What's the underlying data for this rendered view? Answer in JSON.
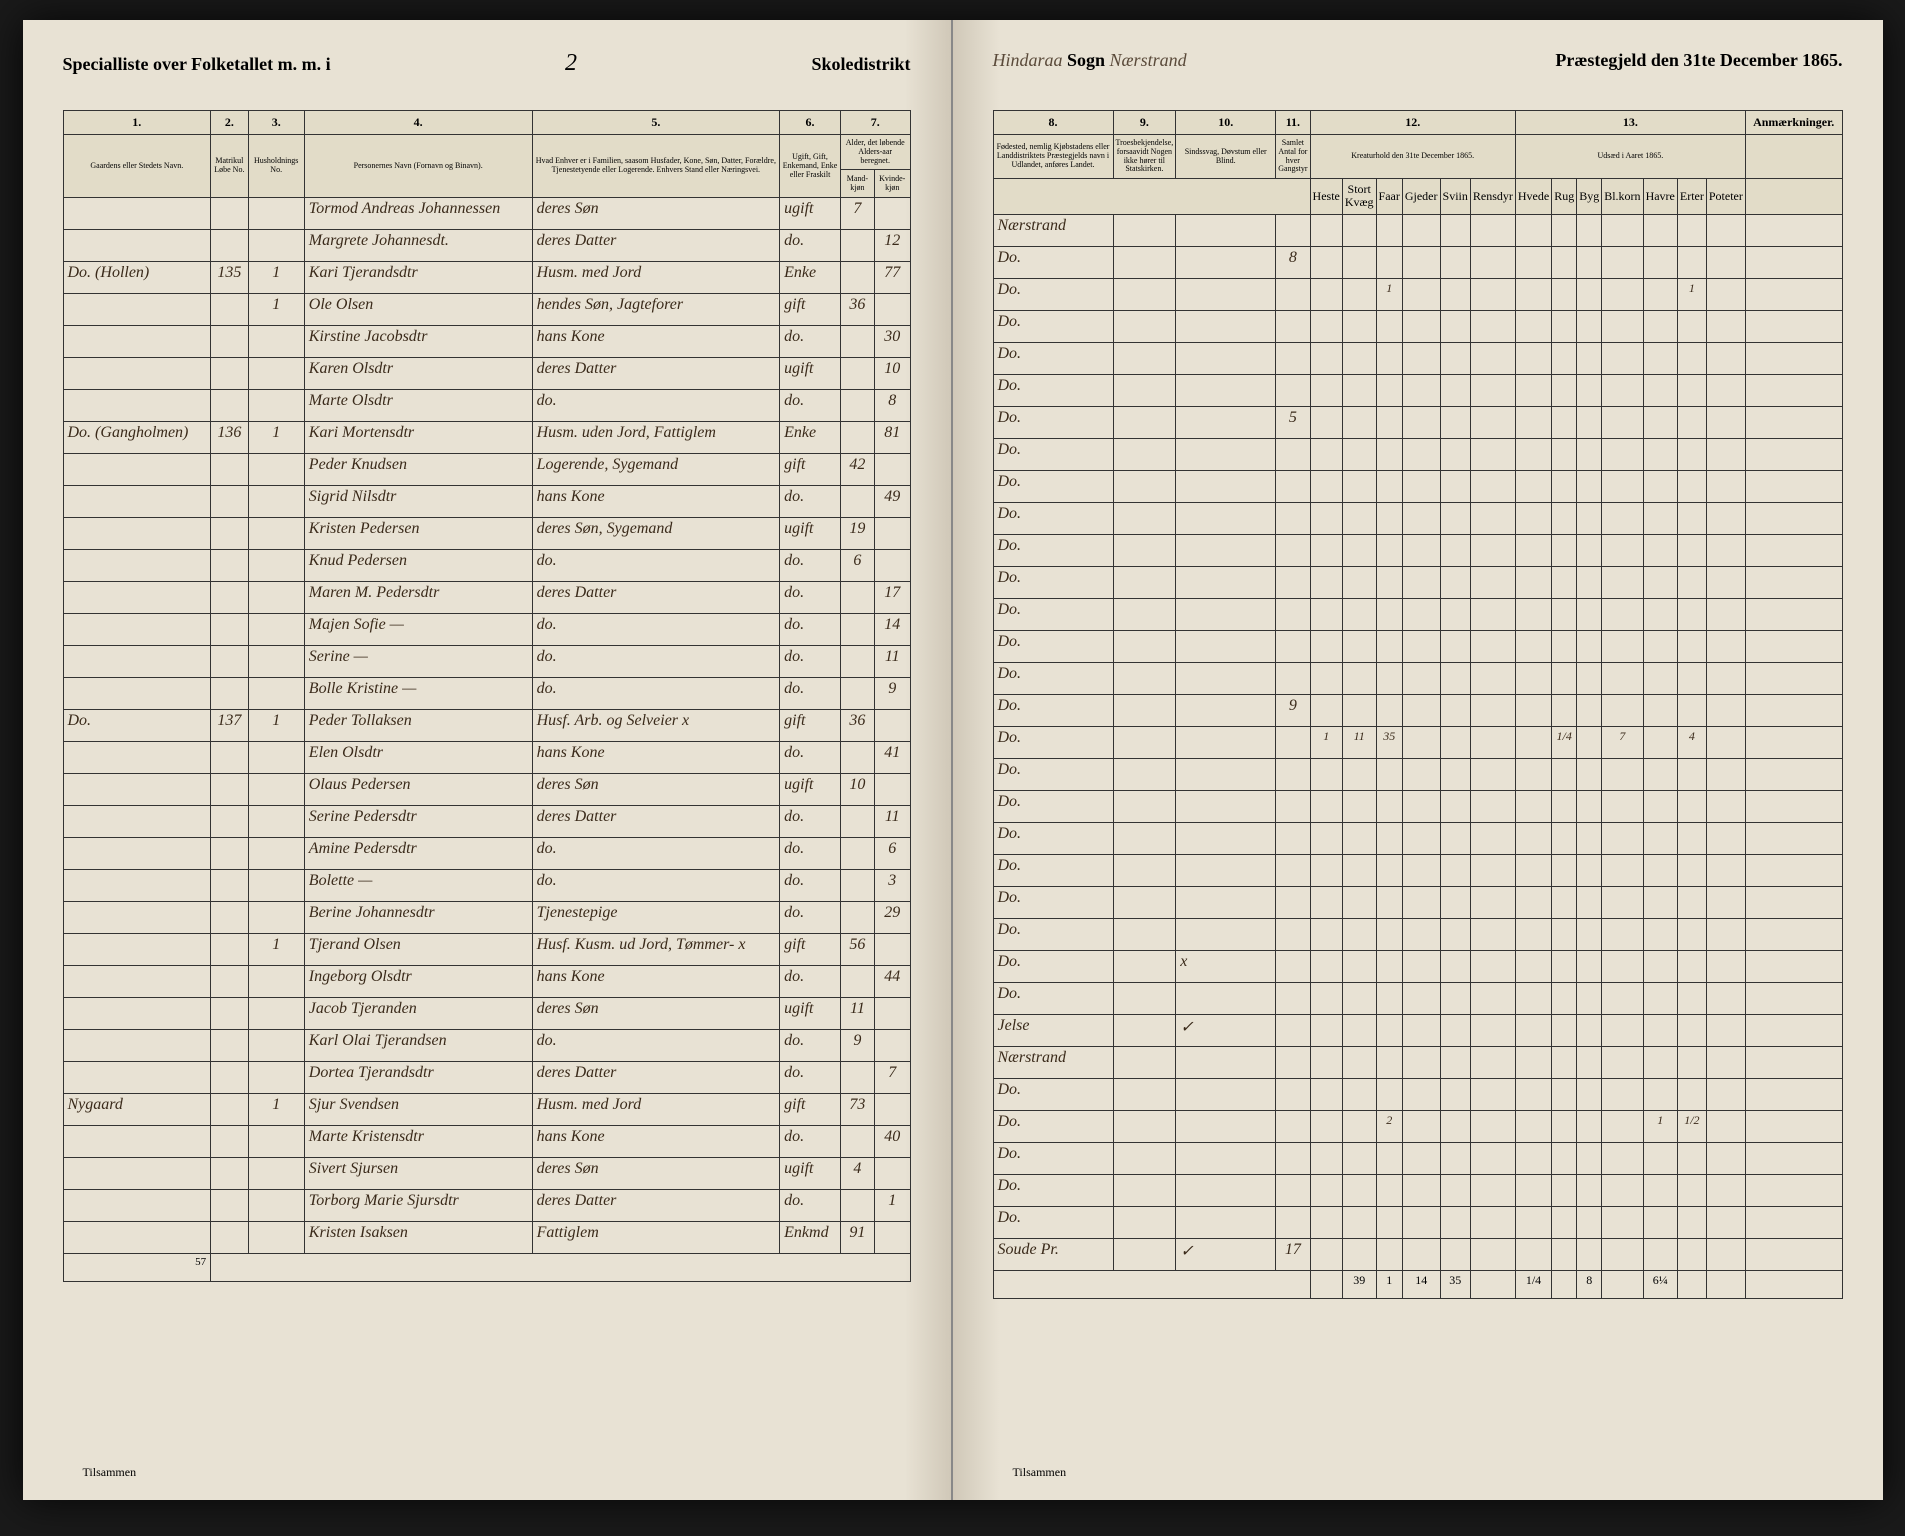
{
  "header": {
    "left_title": "Specialliste over Folketallet m. m. i",
    "district_number": "2",
    "district_label": "Skoledistrikt",
    "sogn_prefix": "Hindaraa",
    "sogn_label": "Sogn",
    "parish": "Nærstrand",
    "right_title": "Præstegjeld den 31te December 1865."
  },
  "columns_left": {
    "c1": "1.",
    "c2": "2.",
    "c3": "3.",
    "c4": "4.",
    "c5": "5.",
    "c6": "6.",
    "c7": "7.",
    "c1_label": "Gaardens eller Stedets Navn.",
    "c2_label": "Matrikul Løbe No.",
    "c3_label": "Husholdnings No.",
    "c4_label": "Personernes Navn (Fornavn og Binavn).",
    "c5_label": "Hvad Enhver er i Familien, saasom Husfader, Kone, Søn, Datter, Forældre, Tjenestetyende eller Logerende. Enhvers Stand eller Næringsvei.",
    "c6_label": "Ugift, Gift, Enkemand, Enke eller Fraskilt",
    "c7_label": "Alder, det løbende Alders-aar beregnet.",
    "c7a": "Mand-kjøn",
    "c7b": "Kvinde-kjøn"
  },
  "columns_right": {
    "c8": "8.",
    "c9": "9.",
    "c10": "10.",
    "c11": "11.",
    "c12": "12.",
    "c13": "13.",
    "c8_label": "Fødested, nemlig Kjøbstadens eller Landdistriktets Præstegjelds navn i Udlandet, anføres Landet.",
    "c9_label": "Troesbekjendelse, forsaavidt Nogen ikke hører til Statskirken.",
    "c10_label": "Sindssvag, Døvstum eller Blind.",
    "c11_label": "Samlet Antal for hver Gangstyr",
    "c12_label": "Kreaturhold den 31te December 1865.",
    "c13_label": "Udsæd i Aaret 1865."
  },
  "rows": [
    {
      "place": "",
      "mat": "",
      "hh": "",
      "name": "Tormod Andreas Johannessen",
      "role": "deres Søn",
      "status": "ugift",
      "age_m": "7",
      "age_f": "",
      "birth": "Nærstrand",
      "rel": "",
      "note": "",
      "c11": "",
      "ani": [
        "",
        "",
        "",
        "",
        "",
        ""
      ],
      "seed": [
        "",
        "",
        "",
        "",
        "",
        "",
        ""
      ]
    },
    {
      "place": "",
      "mat": "",
      "hh": "",
      "name": "Margrete Johannesdt.",
      "role": "deres Datter",
      "status": "do.",
      "age_m": "",
      "age_f": "12",
      "birth": "Do.",
      "rel": "",
      "note": "",
      "c11": "8",
      "ani": [
        "",
        "",
        "",
        "",
        "",
        ""
      ],
      "seed": [
        "",
        "",
        "",
        "",
        "",
        "",
        ""
      ]
    },
    {
      "place": "Do. (Hollen)",
      "mat": "135",
      "hh": "1",
      "name": "Kari Tjerandsdtr",
      "role": "Husm. med Jord",
      "status": "Enke",
      "age_m": "",
      "age_f": "77",
      "birth": "Do.",
      "rel": "",
      "note": "",
      "c11": "",
      "ani": [
        "",
        "",
        "1",
        "",
        "",
        ""
      ],
      "seed": [
        "",
        "",
        "",
        "",
        "",
        "1",
        ""
      ]
    },
    {
      "place": "",
      "mat": "",
      "hh": "1",
      "name": "Ole Olsen",
      "role": "hendes Søn, Jagteforer",
      "status": "gift",
      "age_m": "36",
      "age_f": "",
      "birth": "Do.",
      "rel": "",
      "note": "",
      "c11": "",
      "ani": [
        "",
        "",
        "",
        "",
        "",
        ""
      ],
      "seed": [
        "",
        "",
        "",
        "",
        "",
        "",
        ""
      ]
    },
    {
      "place": "",
      "mat": "",
      "hh": "",
      "name": "Kirstine Jacobsdtr",
      "role": "hans Kone",
      "status": "do.",
      "age_m": "",
      "age_f": "30",
      "birth": "Do.",
      "rel": "",
      "note": "",
      "c11": "",
      "ani": [
        "",
        "",
        "",
        "",
        "",
        ""
      ],
      "seed": [
        "",
        "",
        "",
        "",
        "",
        "",
        ""
      ]
    },
    {
      "place": "",
      "mat": "",
      "hh": "",
      "name": "Karen Olsdtr",
      "role": "deres Datter",
      "status": "ugift",
      "age_m": "",
      "age_f": "10",
      "birth": "Do.",
      "rel": "",
      "note": "",
      "c11": "",
      "ani": [
        "",
        "",
        "",
        "",
        "",
        ""
      ],
      "seed": [
        "",
        "",
        "",
        "",
        "",
        "",
        ""
      ]
    },
    {
      "place": "",
      "mat": "",
      "hh": "",
      "name": "Marte Olsdtr",
      "role": "do.",
      "status": "do.",
      "age_m": "",
      "age_f": "8",
      "birth": "Do.",
      "rel": "",
      "note": "",
      "c11": "5",
      "ani": [
        "",
        "",
        "",
        "",
        "",
        ""
      ],
      "seed": [
        "",
        "",
        "",
        "",
        "",
        "",
        ""
      ]
    },
    {
      "place": "Do. (Gangholmen)",
      "mat": "136",
      "hh": "1",
      "name": "Kari Mortensdtr",
      "role": "Husm. uden Jord, Fattiglem",
      "status": "Enke",
      "age_m": "",
      "age_f": "81",
      "birth": "Do.",
      "rel": "",
      "note": "",
      "c11": "",
      "ani": [
        "",
        "",
        "",
        "",
        "",
        ""
      ],
      "seed": [
        "",
        "",
        "",
        "",
        "",
        "",
        ""
      ]
    },
    {
      "place": "",
      "mat": "",
      "hh": "",
      "name": "Peder Knudsen",
      "role": "Logerende, Sygemand",
      "status": "gift",
      "age_m": "42",
      "age_f": "",
      "birth": "Do.",
      "rel": "",
      "note": "",
      "c11": "",
      "ani": [
        "",
        "",
        "",
        "",
        "",
        ""
      ],
      "seed": [
        "",
        "",
        "",
        "",
        "",
        "",
        ""
      ]
    },
    {
      "place": "",
      "mat": "",
      "hh": "",
      "name": "Sigrid Nilsdtr",
      "role": "hans Kone",
      "status": "do.",
      "age_m": "",
      "age_f": "49",
      "birth": "Do.",
      "rel": "",
      "note": "",
      "c11": "",
      "ani": [
        "",
        "",
        "",
        "",
        "",
        ""
      ],
      "seed": [
        "",
        "",
        "",
        "",
        "",
        "",
        ""
      ]
    },
    {
      "place": "",
      "mat": "",
      "hh": "",
      "name": "Kristen Pedersen",
      "role": "deres Søn, Sygemand",
      "status": "ugift",
      "age_m": "19",
      "age_f": "",
      "birth": "Do.",
      "rel": "",
      "note": "",
      "c11": "",
      "ani": [
        "",
        "",
        "",
        "",
        "",
        ""
      ],
      "seed": [
        "",
        "",
        "",
        "",
        "",
        "",
        ""
      ]
    },
    {
      "place": "",
      "mat": "",
      "hh": "",
      "name": "Knud Pedersen",
      "role": "do.",
      "status": "do.",
      "age_m": "6",
      "age_f": "",
      "birth": "Do.",
      "rel": "",
      "note": "",
      "c11": "",
      "ani": [
        "",
        "",
        "",
        "",
        "",
        ""
      ],
      "seed": [
        "",
        "",
        "",
        "",
        "",
        "",
        ""
      ]
    },
    {
      "place": "",
      "mat": "",
      "hh": "",
      "name": "Maren M. Pedersdtr",
      "role": "deres Datter",
      "status": "do.",
      "age_m": "",
      "age_f": "17",
      "birth": "Do.",
      "rel": "",
      "note": "",
      "c11": "",
      "ani": [
        "",
        "",
        "",
        "",
        "",
        ""
      ],
      "seed": [
        "",
        "",
        "",
        "",
        "",
        "",
        ""
      ]
    },
    {
      "place": "",
      "mat": "",
      "hh": "",
      "name": "Majen Sofie —",
      "role": "do.",
      "status": "do.",
      "age_m": "",
      "age_f": "14",
      "birth": "Do.",
      "rel": "",
      "note": "",
      "c11": "",
      "ani": [
        "",
        "",
        "",
        "",
        "",
        ""
      ],
      "seed": [
        "",
        "",
        "",
        "",
        "",
        "",
        ""
      ]
    },
    {
      "place": "",
      "mat": "",
      "hh": "",
      "name": "Serine —",
      "role": "do.",
      "status": "do.",
      "age_m": "",
      "age_f": "11",
      "birth": "Do.",
      "rel": "",
      "note": "",
      "c11": "",
      "ani": [
        "",
        "",
        "",
        "",
        "",
        ""
      ],
      "seed": [
        "",
        "",
        "",
        "",
        "",
        "",
        ""
      ]
    },
    {
      "place": "",
      "mat": "",
      "hh": "",
      "name": "Bolle Kristine —",
      "role": "do.",
      "status": "do.",
      "age_m": "",
      "age_f": "9",
      "birth": "Do.",
      "rel": "",
      "note": "",
      "c11": "9",
      "ani": [
        "",
        "",
        "",
        "",
        "",
        ""
      ],
      "seed": [
        "",
        "",
        "",
        "",
        "",
        "",
        ""
      ]
    },
    {
      "place": "Do.",
      "mat": "137",
      "hh": "1",
      "name": "Peder Tollaksen",
      "role": "Husf. Arb. og Selveier    x",
      "status": "gift",
      "age_m": "36",
      "age_f": "",
      "birth": "Do.",
      "rel": "",
      "note": "",
      "c11": "",
      "ani": [
        "1",
        "11",
        "35",
        "",
        "",
        ""
      ],
      "seed": [
        "",
        "1/4",
        "",
        "7",
        "",
        "4",
        ""
      ]
    },
    {
      "place": "",
      "mat": "",
      "hh": "",
      "name": "Elen Olsdtr",
      "role": "hans Kone",
      "status": "do.",
      "age_m": "",
      "age_f": "41",
      "birth": "Do.",
      "rel": "",
      "note": "",
      "c11": "",
      "ani": [
        "",
        "",
        "",
        "",
        "",
        ""
      ],
      "seed": [
        "",
        "",
        "",
        "",
        "",
        "",
        ""
      ]
    },
    {
      "place": "",
      "mat": "",
      "hh": "",
      "name": "Olaus Pedersen",
      "role": "deres Søn",
      "status": "ugift",
      "age_m": "10",
      "age_f": "",
      "birth": "Do.",
      "rel": "",
      "note": "",
      "c11": "",
      "ani": [
        "",
        "",
        "",
        "",
        "",
        ""
      ],
      "seed": [
        "",
        "",
        "",
        "",
        "",
        "",
        ""
      ]
    },
    {
      "place": "",
      "mat": "",
      "hh": "",
      "name": "Serine Pedersdtr",
      "role": "deres Datter",
      "status": "do.",
      "age_m": "",
      "age_f": "11",
      "birth": "Do.",
      "rel": "",
      "note": "",
      "c11": "",
      "ani": [
        "",
        "",
        "",
        "",
        "",
        ""
      ],
      "seed": [
        "",
        "",
        "",
        "",
        "",
        "",
        ""
      ]
    },
    {
      "place": "",
      "mat": "",
      "hh": "",
      "name": "Amine Pedersdtr",
      "role": "do.",
      "status": "do.",
      "age_m": "",
      "age_f": "6",
      "birth": "Do.",
      "rel": "",
      "note": "",
      "c11": "",
      "ani": [
        "",
        "",
        "",
        "",
        "",
        ""
      ],
      "seed": [
        "",
        "",
        "",
        "",
        "",
        "",
        ""
      ]
    },
    {
      "place": "",
      "mat": "",
      "hh": "",
      "name": "Bolette —",
      "role": "do.",
      "status": "do.",
      "age_m": "",
      "age_f": "3",
      "birth": "Do.",
      "rel": "",
      "note": "",
      "c11": "",
      "ani": [
        "",
        "",
        "",
        "",
        "",
        ""
      ],
      "seed": [
        "",
        "",
        "",
        "",
        "",
        "",
        ""
      ]
    },
    {
      "place": "",
      "mat": "",
      "hh": "",
      "name": "Berine Johannesdtr",
      "role": "Tjenestepige",
      "status": "do.",
      "age_m": "",
      "age_f": "29",
      "birth": "Do.",
      "rel": "",
      "note": "",
      "c11": "",
      "ani": [
        "",
        "",
        "",
        "",
        "",
        ""
      ],
      "seed": [
        "",
        "",
        "",
        "",
        "",
        "",
        ""
      ]
    },
    {
      "place": "",
      "mat": "",
      "hh": "1",
      "name": "Tjerand Olsen",
      "role": "Husf. Kusm. ud Jord, Tømmer-    x",
      "status": "gift",
      "age_m": "56",
      "age_f": "",
      "birth": "Do.",
      "rel": "",
      "note": "x",
      "c11": "",
      "ani": [
        "",
        "",
        "",
        "",
        "",
        ""
      ],
      "seed": [
        "",
        "",
        "",
        "",
        "",
        "",
        ""
      ]
    },
    {
      "place": "",
      "mat": "",
      "hh": "",
      "name": "Ingeborg Olsdtr",
      "role": "hans Kone",
      "status": "do.",
      "age_m": "",
      "age_f": "44",
      "birth": "Do.",
      "rel": "",
      "note": "",
      "c11": "",
      "ani": [
        "",
        "",
        "",
        "",
        "",
        ""
      ],
      "seed": [
        "",
        "",
        "",
        "",
        "",
        "",
        ""
      ]
    },
    {
      "place": "",
      "mat": "",
      "hh": "",
      "name": "Jacob Tjeranden",
      "role": "deres Søn",
      "status": "ugift",
      "age_m": "11",
      "age_f": "",
      "birth": "Jelse",
      "rel": "",
      "note": "✓",
      "c11": "",
      "ani": [
        "",
        "",
        "",
        "",
        "",
        ""
      ],
      "seed": [
        "",
        "",
        "",
        "",
        "",
        "",
        ""
      ]
    },
    {
      "place": "",
      "mat": "",
      "hh": "",
      "name": "Karl Olai Tjerandsen",
      "role": "do.",
      "status": "do.",
      "age_m": "9",
      "age_f": "",
      "birth": "Nærstrand",
      "rel": "",
      "note": "",
      "c11": "",
      "ani": [
        "",
        "",
        "",
        "",
        "",
        ""
      ],
      "seed": [
        "",
        "",
        "",
        "",
        "",
        "",
        ""
      ]
    },
    {
      "place": "",
      "mat": "",
      "hh": "",
      "name": "Dortea Tjerandsdtr",
      "role": "deres Datter",
      "status": "do.",
      "age_m": "",
      "age_f": "7",
      "birth": "Do.",
      "rel": "",
      "note": "",
      "c11": "",
      "ani": [
        "",
        "",
        "",
        "",
        "",
        ""
      ],
      "seed": [
        "",
        "",
        "",
        "",
        "",
        "",
        ""
      ]
    },
    {
      "place": "Nygaard",
      "mat": "",
      "hh": "1",
      "name": "Sjur Svendsen",
      "role": "Husm. med Jord",
      "status": "gift",
      "age_m": "73",
      "age_f": "",
      "birth": "Do.",
      "rel": "",
      "note": "",
      "c11": "",
      "ani": [
        "",
        "",
        "2",
        "",
        "",
        ""
      ],
      "seed": [
        "",
        "",
        "",
        "",
        "1",
        "1/2",
        ""
      ]
    },
    {
      "place": "",
      "mat": "",
      "hh": "",
      "name": "Marte Kristensdtr",
      "role": "hans Kone",
      "status": "do.",
      "age_m": "",
      "age_f": "40",
      "birth": "Do.",
      "rel": "",
      "note": "",
      "c11": "",
      "ani": [
        "",
        "",
        "",
        "",
        "",
        ""
      ],
      "seed": [
        "",
        "",
        "",
        "",
        "",
        "",
        ""
      ]
    },
    {
      "place": "",
      "mat": "",
      "hh": "",
      "name": "Sivert Sjursen",
      "role": "deres Søn",
      "status": "ugift",
      "age_m": "4",
      "age_f": "",
      "birth": "Do.",
      "rel": "",
      "note": "",
      "c11": "",
      "ani": [
        "",
        "",
        "",
        "",
        "",
        ""
      ],
      "seed": [
        "",
        "",
        "",
        "",
        "",
        "",
        ""
      ]
    },
    {
      "place": "",
      "mat": "",
      "hh": "",
      "name": "Torborg Marie Sjursdtr",
      "role": "deres Datter",
      "status": "do.",
      "age_m": "",
      "age_f": "1",
      "birth": "Do.",
      "rel": "",
      "note": "",
      "c11": "",
      "ani": [
        "",
        "",
        "",
        "",
        "",
        ""
      ],
      "seed": [
        "",
        "",
        "",
        "",
        "",
        "",
        ""
      ]
    },
    {
      "place": "",
      "mat": "",
      "hh": "",
      "name": "Kristen Isaksen",
      "role": "Fattiglem",
      "status": "Enkmd",
      "age_m": "91",
      "age_f": "",
      "birth": "Soude Pr.",
      "rel": "",
      "note": "✓",
      "c11": "17",
      "ani": [
        "",
        "",
        "",
        "",
        "",
        ""
      ],
      "seed": [
        "",
        "",
        "",
        "",
        "",
        "",
        ""
      ]
    }
  ],
  "totals": {
    "left_label": "Tilsammen",
    "left_count": "57",
    "right_label": "Tilsammen",
    "ani": [
      "",
      "39",
      "1",
      "14",
      "35",
      ""
    ],
    "seed": [
      "1/4",
      "",
      "8",
      "",
      "6¼",
      ""
    ]
  },
  "footer": "Tilsammen"
}
